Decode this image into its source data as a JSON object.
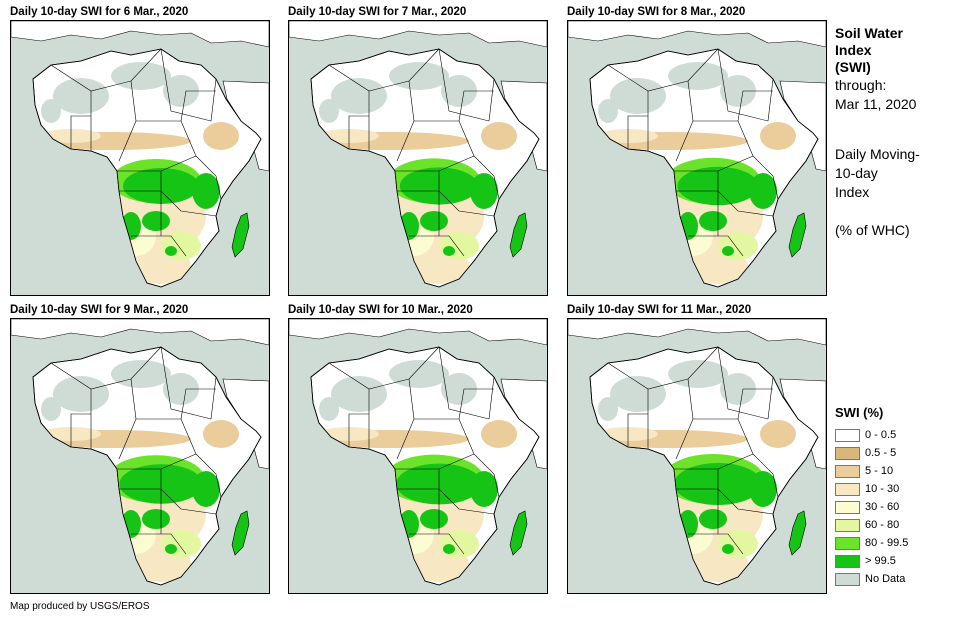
{
  "panels": [
    {
      "title": "Daily 10-day  SWI for 6 Mar., 2020"
    },
    {
      "title": "Daily 10-day  SWI for 7 Mar., 2020"
    },
    {
      "title": "Daily 10-day  SWI for 8 Mar., 2020"
    },
    {
      "title": "Daily 10-day  SWI for 9 Mar., 2020"
    },
    {
      "title": "Daily 10-day  SWI for 10 Mar., 2020"
    },
    {
      "title": "Daily 10-day  SWI for 11 Mar., 2020"
    }
  ],
  "side_info": {
    "title_line1": "Soil Water",
    "title_line2": "Index",
    "title_line3": "(SWI)",
    "through_label": "through:",
    "through_date": "Mar 11, 2020",
    "desc_line1": "Daily Moving-",
    "desc_line2": "10-day",
    "desc_line3": "Index",
    "unit": "(% of WHC)"
  },
  "legend": {
    "title": "SWI (%)",
    "items": [
      {
        "label": "0 - 0.5",
        "color": "#ffffff"
      },
      {
        "label": "0.5 - 5",
        "color": "#d9b67c"
      },
      {
        "label": "5 - 10",
        "color": "#ebcc9b"
      },
      {
        "label": "10 - 30",
        "color": "#f7e7c3"
      },
      {
        "label": "30 - 60",
        "color": "#fcfcd2"
      },
      {
        "label": "60 - 80",
        "color": "#e3f7a1"
      },
      {
        "label": "80 - 99.5",
        "color": "#6be32b"
      },
      {
        "label": "> 99.5",
        "color": "#16c416"
      },
      {
        "label": "No Data",
        "color": "#cfdcd6"
      }
    ]
  },
  "colors": {
    "ocean": "#cfdcd6",
    "land": "#ffffff",
    "desert": "#cfdcd6",
    "dry": "#ebcc9b",
    "moist": "#f7e7c3",
    "semi": "#fcfcd2",
    "light_green": "#e3f7a1",
    "green": "#6be32b",
    "saturated": "#16c416"
  },
  "footer": "Map produced by USGS/EROS"
}
